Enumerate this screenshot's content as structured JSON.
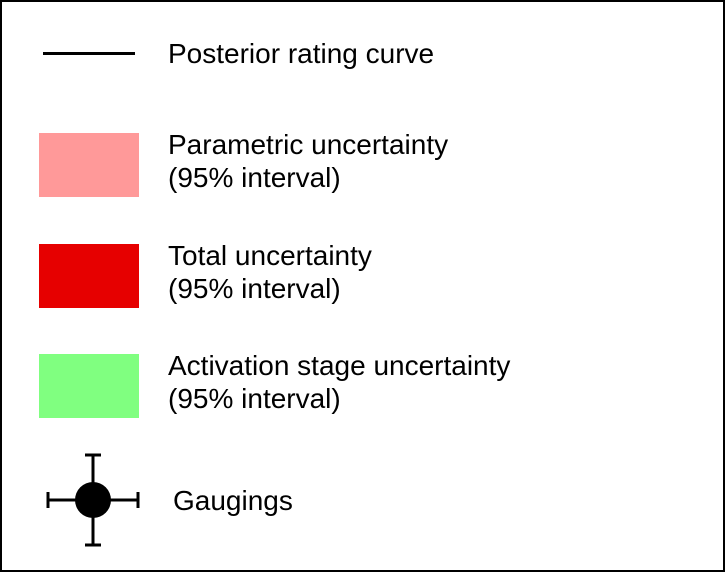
{
  "legend": {
    "border_color": "#000000",
    "items": [
      {
        "id": "posterior-rating-curve",
        "symbol": "line",
        "symbol_color": "#000000",
        "label_lines": [
          "Posterior rating curve"
        ]
      },
      {
        "id": "parametric-uncertainty",
        "symbol": "swatch",
        "symbol_color": "#ff9999",
        "label_lines": [
          "Parametric uncertainty",
          "(95% interval)"
        ]
      },
      {
        "id": "total-uncertainty",
        "symbol": "swatch",
        "symbol_color": "#e60000",
        "label_lines": [
          "Total uncertainty",
          "(95% interval)"
        ]
      },
      {
        "id": "activation-stage-uncertainty",
        "symbol": "swatch",
        "symbol_color": "#80ff80",
        "label_lines": [
          "Activation stage uncertainty",
          "(95% interval)"
        ]
      },
      {
        "id": "gaugings",
        "symbol": "point-with-error-bars",
        "symbol_color": "#000000",
        "label_lines": [
          "Gaugings"
        ]
      }
    ]
  }
}
